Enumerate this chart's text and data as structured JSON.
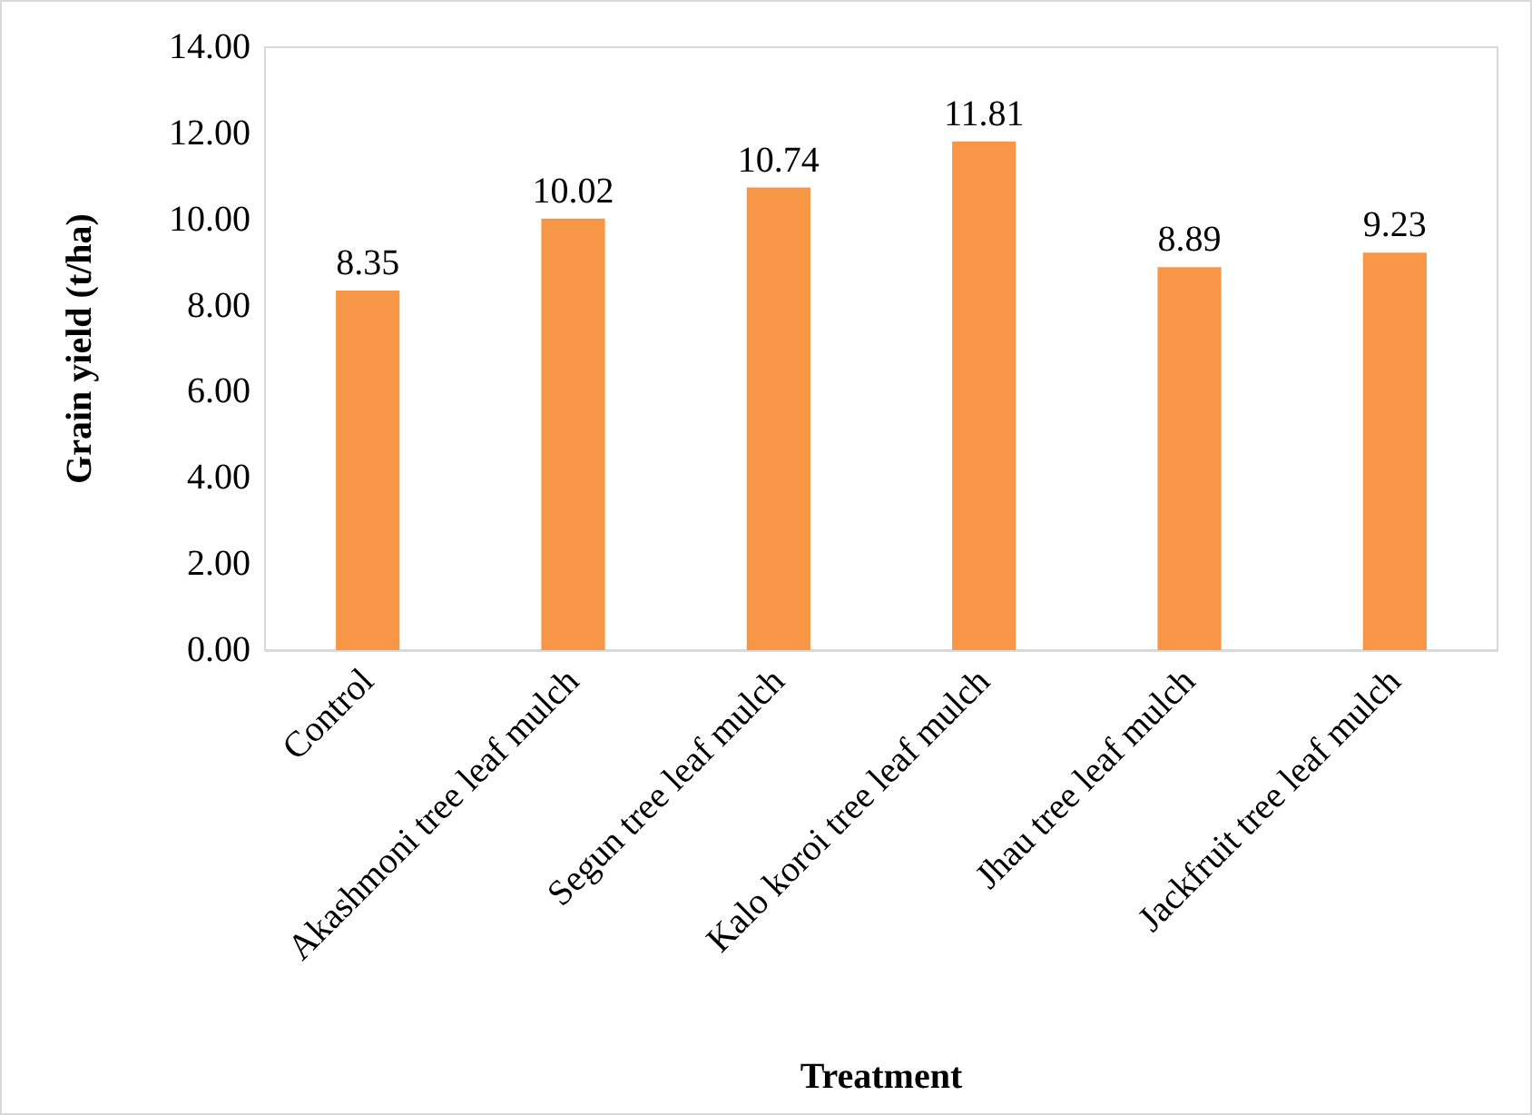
{
  "chart_data": {
    "type": "bar",
    "xlabel": "Treatment",
    "ylabel": "Grain yield (t/ha)",
    "categories": [
      "Control",
      "Akashmoni tree leaf mulch",
      "Segun tree leaf mulch",
      "Kalo koroi tree leaf mulch",
      "Jhau tree leaf mulch",
      "Jackfruit tree leaf mulch"
    ],
    "values": [
      8.35,
      10.02,
      10.74,
      11.81,
      8.89,
      9.23
    ],
    "color": "#f79646",
    "ylim": [
      0,
      14
    ],
    "yticks": [
      {
        "value": 0,
        "label": "0.00"
      },
      {
        "value": 2,
        "label": "2.00"
      },
      {
        "value": 4,
        "label": "4.00"
      },
      {
        "value": 6,
        "label": "6.00"
      },
      {
        "value": 8,
        "label": "8.00"
      },
      {
        "value": 10,
        "label": "10.00"
      },
      {
        "value": 12,
        "label": "12.00"
      },
      {
        "value": 14,
        "label": "14.00"
      }
    ],
    "data_labels": true,
    "grid": false
  }
}
